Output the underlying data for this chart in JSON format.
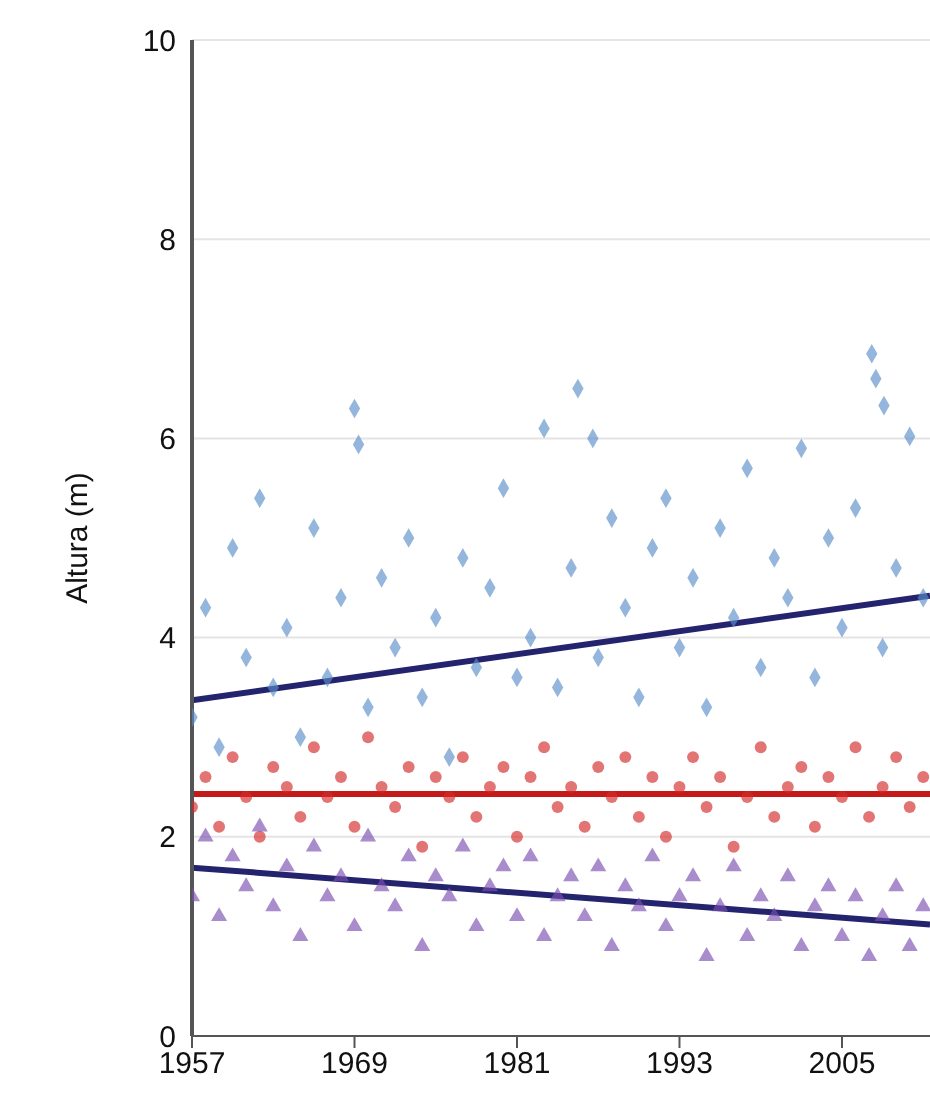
{
  "chart_data": {
    "type": "scatter",
    "ylabel": "Altura (m)",
    "xlim": [
      1957,
      2011.5
    ],
    "xticks": [
      1957,
      1969,
      1981,
      1993,
      2005
    ],
    "ylim": [
      0,
      10
    ],
    "yticks": [
      0,
      2,
      4,
      6,
      8,
      10
    ],
    "grid": "y",
    "legend": false,
    "series": [
      {
        "marker": "diamond",
        "color": "#5b8fc9",
        "x": [
          1957,
          1958,
          1959,
          1960,
          1961,
          1962,
          1963,
          1964,
          1965,
          1966,
          1967,
          1968,
          1969,
          1969.3,
          1970,
          1971,
          1972,
          1973,
          1974,
          1975,
          1976,
          1977,
          1978,
          1979,
          1980,
          1981,
          1982,
          1983,
          1984,
          1985,
          1985.5,
          1986.6,
          1987,
          1988,
          1989,
          1990,
          1991,
          1992,
          1993,
          1994,
          1995,
          1996,
          1997,
          1998,
          1999,
          2000,
          2001,
          2002,
          2003,
          2004,
          2005,
          2006,
          2007.2,
          2007.5,
          2008,
          2008.1,
          2009,
          2010,
          2011
        ],
        "values": [
          3.2,
          4.3,
          2.9,
          4.9,
          3.8,
          5.4,
          3.5,
          4.1,
          3.0,
          5.1,
          3.6,
          4.4,
          6.3,
          5.94,
          3.3,
          4.6,
          3.9,
          5.0,
          3.4,
          4.2,
          2.8,
          4.8,
          3.7,
          4.5,
          5.5,
          3.6,
          4.0,
          6.1,
          3.5,
          4.7,
          6.5,
          6.0,
          3.8,
          5.2,
          4.3,
          3.4,
          4.9,
          5.4,
          3.9,
          4.6,
          3.3,
          5.1,
          4.2,
          5.7,
          3.7,
          4.8,
          4.4,
          5.9,
          3.6,
          5.0,
          4.1,
          5.3,
          6.85,
          6.6,
          3.9,
          6.33,
          4.7,
          6.02,
          4.4
        ]
      },
      {
        "marker": "circle",
        "color": "#d42a2a",
        "x": [
          1957,
          1958,
          1959,
          1960,
          1961,
          1962,
          1963,
          1964,
          1965,
          1966,
          1967,
          1968,
          1969,
          1970,
          1971,
          1972,
          1973,
          1974,
          1975,
          1976,
          1977,
          1978,
          1979,
          1980,
          1981,
          1982,
          1983,
          1984,
          1985,
          1986,
          1987,
          1988,
          1989,
          1990,
          1991,
          1992,
          1993,
          1994,
          1995,
          1996,
          1997,
          1998,
          1999,
          2000,
          2001,
          2002,
          2003,
          2004,
          2005,
          2006,
          2007,
          2008,
          2009,
          2010,
          2011
        ],
        "values": [
          2.3,
          2.6,
          2.1,
          2.8,
          2.4,
          2.0,
          2.7,
          2.5,
          2.2,
          2.9,
          2.4,
          2.6,
          2.1,
          3.0,
          2.5,
          2.3,
          2.7,
          1.9,
          2.6,
          2.4,
          2.8,
          2.2,
          2.5,
          2.7,
          2.0,
          2.6,
          2.9,
          2.3,
          2.5,
          2.1,
          2.7,
          2.4,
          2.8,
          2.2,
          2.6,
          2.0,
          2.5,
          2.8,
          2.3,
          2.6,
          1.9,
          2.4,
          2.9,
          2.2,
          2.5,
          2.7,
          2.1,
          2.6,
          2.4,
          2.9,
          2.2,
          2.5,
          2.8,
          2.3,
          2.6
        ]
      },
      {
        "marker": "triangle",
        "color": "#7a4fb0",
        "x": [
          1957,
          1958,
          1959,
          1960,
          1961,
          1962,
          1963,
          1964,
          1965,
          1966,
          1967,
          1968,
          1969,
          1970,
          1971,
          1972,
          1973,
          1974,
          1975,
          1976,
          1977,
          1978,
          1979,
          1980,
          1981,
          1982,
          1983,
          1984,
          1985,
          1986,
          1987,
          1988,
          1989,
          1990,
          1991,
          1992,
          1993,
          1994,
          1995,
          1996,
          1997,
          1998,
          1999,
          2000,
          2001,
          2002,
          2003,
          2004,
          2005,
          2006,
          2007,
          2008,
          2009,
          2010,
          2011
        ],
        "values": [
          1.4,
          2.0,
          1.2,
          1.8,
          1.5,
          2.1,
          1.3,
          1.7,
          1.0,
          1.9,
          1.4,
          1.6,
          1.1,
          2.0,
          1.5,
          1.3,
          1.8,
          0.9,
          1.6,
          1.4,
          1.9,
          1.1,
          1.5,
          1.7,
          1.2,
          1.8,
          1.0,
          1.4,
          1.6,
          1.2,
          1.7,
          0.9,
          1.5,
          1.3,
          1.8,
          1.1,
          1.4,
          1.6,
          0.8,
          1.3,
          1.7,
          1.0,
          1.4,
          1.2,
          1.6,
          0.9,
          1.3,
          1.5,
          1.0,
          1.4,
          0.8,
          1.2,
          1.5,
          0.9,
          1.3
        ]
      },
      {
        "type": "line",
        "marker": "none",
        "color": "#23236e",
        "x": [
          1957,
          2011.5
        ],
        "values": [
          3.37,
          4.42
        ]
      },
      {
        "type": "line",
        "marker": "none",
        "color": "#c41a1a",
        "x": [
          1957,
          2011.5
        ],
        "values": [
          2.43,
          2.43
        ]
      },
      {
        "type": "line",
        "marker": "none",
        "color": "#23236e",
        "x": [
          1957,
          2011.5
        ],
        "values": [
          1.69,
          1.12
        ]
      }
    ]
  }
}
